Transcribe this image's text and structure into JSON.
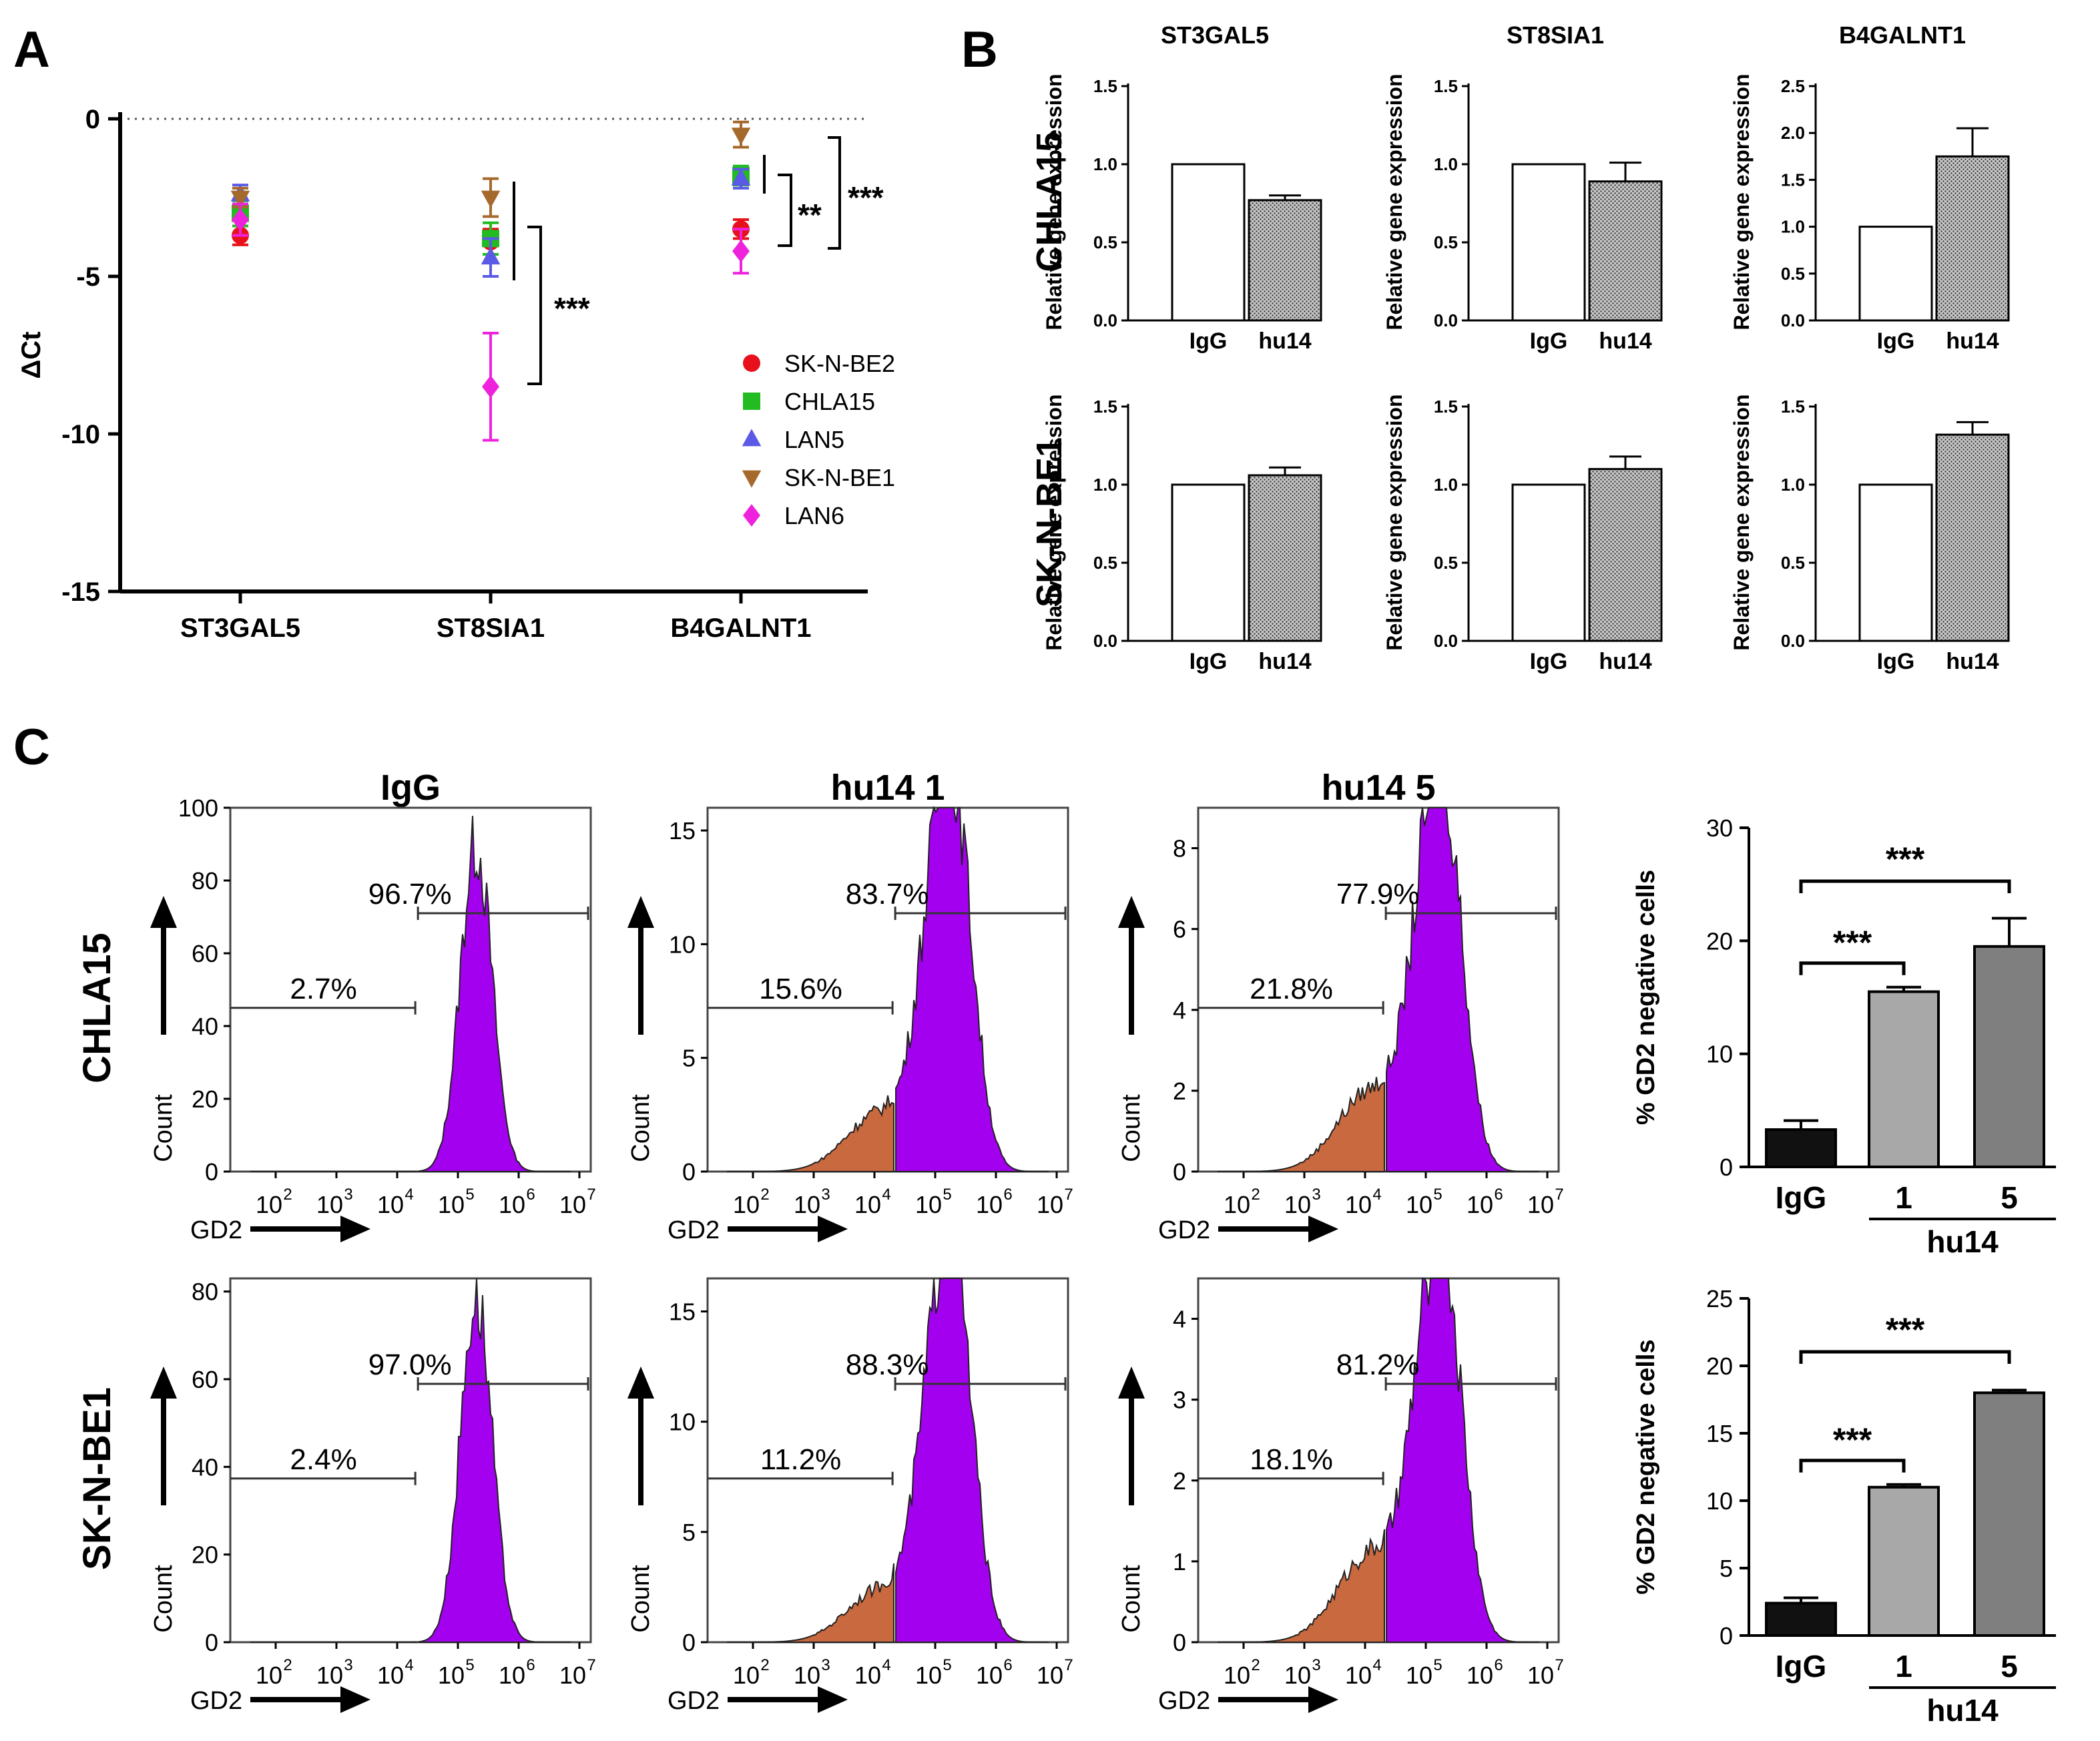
{
  "panel_labels": {
    "a": "A",
    "b": "B",
    "c": "C"
  },
  "chart_data": [
    {
      "id": "A",
      "type": "scatter",
      "ylabel": "ΔCt",
      "ylim": [
        -15,
        0
      ],
      "yticks": [
        0,
        -5,
        -10,
        -15
      ],
      "categories": [
        "ST3GAL5",
        "ST8SIA1",
        "B4GALNT1"
      ],
      "series": [
        {
          "name": "SK-N-BE2",
          "color": "#e8101a",
          "marker": "circle",
          "values": [
            -3.7,
            -3.9,
            -3.5
          ],
          "errors": [
            0.3,
            0.4,
            0.3
          ]
        },
        {
          "name": "CHLA15",
          "color": "#22bb22",
          "marker": "square",
          "values": [
            -3.0,
            -3.8,
            -1.8
          ],
          "errors": [
            0.4,
            0.5,
            0.3
          ]
        },
        {
          "name": "LAN5",
          "color": "#5a5ae6",
          "marker": "triangle",
          "values": [
            -2.4,
            -4.4,
            -1.9
          ],
          "errors": [
            0.3,
            0.6,
            0.3
          ]
        },
        {
          "name": "SK-N-BE1",
          "color": "#a6692c",
          "marker": "triangle-down",
          "values": [
            -2.5,
            -2.5,
            -0.5
          ],
          "errors": [
            0.3,
            0.6,
            0.4
          ]
        },
        {
          "name": "LAN6",
          "color": "#ee22dd",
          "marker": "diamond",
          "values": [
            -3.2,
            -8.5,
            -4.2
          ],
          "errors": [
            0.5,
            1.7,
            0.7
          ]
        }
      ],
      "annotations": [
        {
          "text": "***",
          "from": "ST8SIA1 LAN6",
          "to": "ST8SIA1 others"
        },
        {
          "text": "**",
          "from": "B4GALNT1 SK-N-BE2",
          "to": "B4GALNT1 CHLA15"
        },
        {
          "text": "***",
          "from": "B4GALNT1 LAN6",
          "to": "B4GALNT1 SK-N-BE1"
        }
      ]
    },
    {
      "id": "B",
      "type": "bar",
      "col_titles": [
        "ST3GAL5",
        "ST8SIA1",
        "B4GALNT1"
      ],
      "row_titles": [
        "CHLA15",
        "SK-N-BE1"
      ],
      "ylabel": "Relative gene expression",
      "categories": [
        "IgG",
        "hu14"
      ],
      "plots": [
        {
          "row": 0,
          "col": 0,
          "ylim": [
            0,
            1.5
          ],
          "yticks": [
            "0.0",
            "0.5",
            "1.0",
            "1.5"
          ],
          "values": [
            1.0,
            0.77
          ],
          "errors": [
            0,
            0.03
          ]
        },
        {
          "row": 0,
          "col": 1,
          "ylim": [
            0,
            1.5
          ],
          "yticks": [
            "0.0",
            "0.5",
            "1.0",
            "1.5"
          ],
          "values": [
            1.0,
            0.89
          ],
          "errors": [
            0,
            0.12
          ]
        },
        {
          "row": 0,
          "col": 2,
          "ylim": [
            0,
            2.5
          ],
          "yticks": [
            "0.0",
            "0.5",
            "1.0",
            "1.5",
            "2.0",
            "2.5"
          ],
          "values": [
            1.0,
            1.75
          ],
          "errors": [
            0,
            0.3
          ]
        },
        {
          "row": 1,
          "col": 0,
          "ylim": [
            0,
            1.5
          ],
          "yticks": [
            "0.0",
            "0.5",
            "1.0",
            "1.5"
          ],
          "values": [
            1.0,
            1.06
          ],
          "errors": [
            0,
            0.05
          ]
        },
        {
          "row": 1,
          "col": 1,
          "ylim": [
            0,
            1.5
          ],
          "yticks": [
            "0.0",
            "0.5",
            "1.0",
            "1.5"
          ],
          "values": [
            1.0,
            1.1
          ],
          "errors": [
            0,
            0.08
          ]
        },
        {
          "row": 1,
          "col": 2,
          "ylim": [
            0,
            1.5
          ],
          "yticks": [
            "0.0",
            "0.5",
            "1.0",
            "1.5"
          ],
          "values": [
            1.0,
            1.32
          ],
          "errors": [
            0,
            0.08
          ]
        }
      ]
    },
    {
      "id": "C-flow",
      "type": "area",
      "col_titles": [
        "IgG",
        "hu14 1",
        "hu14 5"
      ],
      "row_titles": [
        "CHLA15",
        "SK-N-BE1"
      ],
      "xlabel": "GD2",
      "ylabel": "Count",
      "xticks": [
        "10",
        "10",
        "10",
        "10",
        "10",
        "10"
      ],
      "xtick_exps": [
        "2",
        "3",
        "4",
        "5",
        "6",
        "7"
      ],
      "plots": [
        {
          "row": 0,
          "col": 0,
          "ymax": 100,
          "yticks": [
            "0",
            "20",
            "40",
            "60",
            "80",
            "100"
          ],
          "peak": 90,
          "gate_neg": "2.7%",
          "gate_pos": "96.7%",
          "shoulder": 0.0
        },
        {
          "row": 0,
          "col": 1,
          "ymax": 16,
          "yticks": [
            "0",
            "5",
            "10",
            "15"
          ],
          "peak": 15.5,
          "gate_neg": "15.6%",
          "gate_pos": "83.7%",
          "shoulder": 2.6
        },
        {
          "row": 0,
          "col": 2,
          "ymax": 9,
          "yticks": [
            "0",
            "2",
            "4",
            "6",
            "8"
          ],
          "peak": 8.6,
          "gate_neg": "21.8%",
          "gate_pos": "77.9%",
          "shoulder": 2.0
        },
        {
          "row": 1,
          "col": 0,
          "ymax": 83,
          "yticks": [
            "0",
            "20",
            "40",
            "60",
            "80"
          ],
          "peak": 79,
          "gate_neg": "2.4%",
          "gate_pos": "97.0%",
          "shoulder": 0.0
        },
        {
          "row": 1,
          "col": 1,
          "ymax": 16.5,
          "yticks": [
            "0",
            "5",
            "10",
            "15"
          ],
          "peak": 16,
          "gate_neg": "11.2%",
          "gate_pos": "88.3%",
          "shoulder": 2.4
        },
        {
          "row": 1,
          "col": 2,
          "ymax": 4.5,
          "yticks": [
            "0",
            "1",
            "2",
            "3",
            "4"
          ],
          "peak": 4.3,
          "gate_neg": "18.1%",
          "gate_pos": "81.2%",
          "shoulder": 1.1
        }
      ]
    },
    {
      "id": "C-bars",
      "type": "bar",
      "ylabel": "% GD2 negative cells",
      "categories": [
        "IgG",
        "1",
        "5"
      ],
      "group_label": "hu14",
      "plots": [
        {
          "row": 0,
          "ylim": [
            0,
            30
          ],
          "yticks": [
            "0",
            "10",
            "20",
            "30"
          ],
          "values": [
            3.3,
            15.5,
            19.5
          ],
          "errors": [
            0.8,
            0.4,
            2.5
          ],
          "colors": [
            "#111111",
            "#a8a8a8",
            "#7f7f7f"
          ],
          "sig": [
            "***",
            "***"
          ]
        },
        {
          "row": 1,
          "ylim": [
            0,
            25
          ],
          "yticks": [
            "0",
            "5",
            "10",
            "15",
            "20",
            "25"
          ],
          "values": [
            2.4,
            11.0,
            18.0
          ],
          "errors": [
            0.4,
            0.2,
            0.2
          ],
          "colors": [
            "#111111",
            "#a8a8a8",
            "#7f7f7f"
          ],
          "sig": [
            "***",
            "***"
          ]
        }
      ]
    }
  ]
}
